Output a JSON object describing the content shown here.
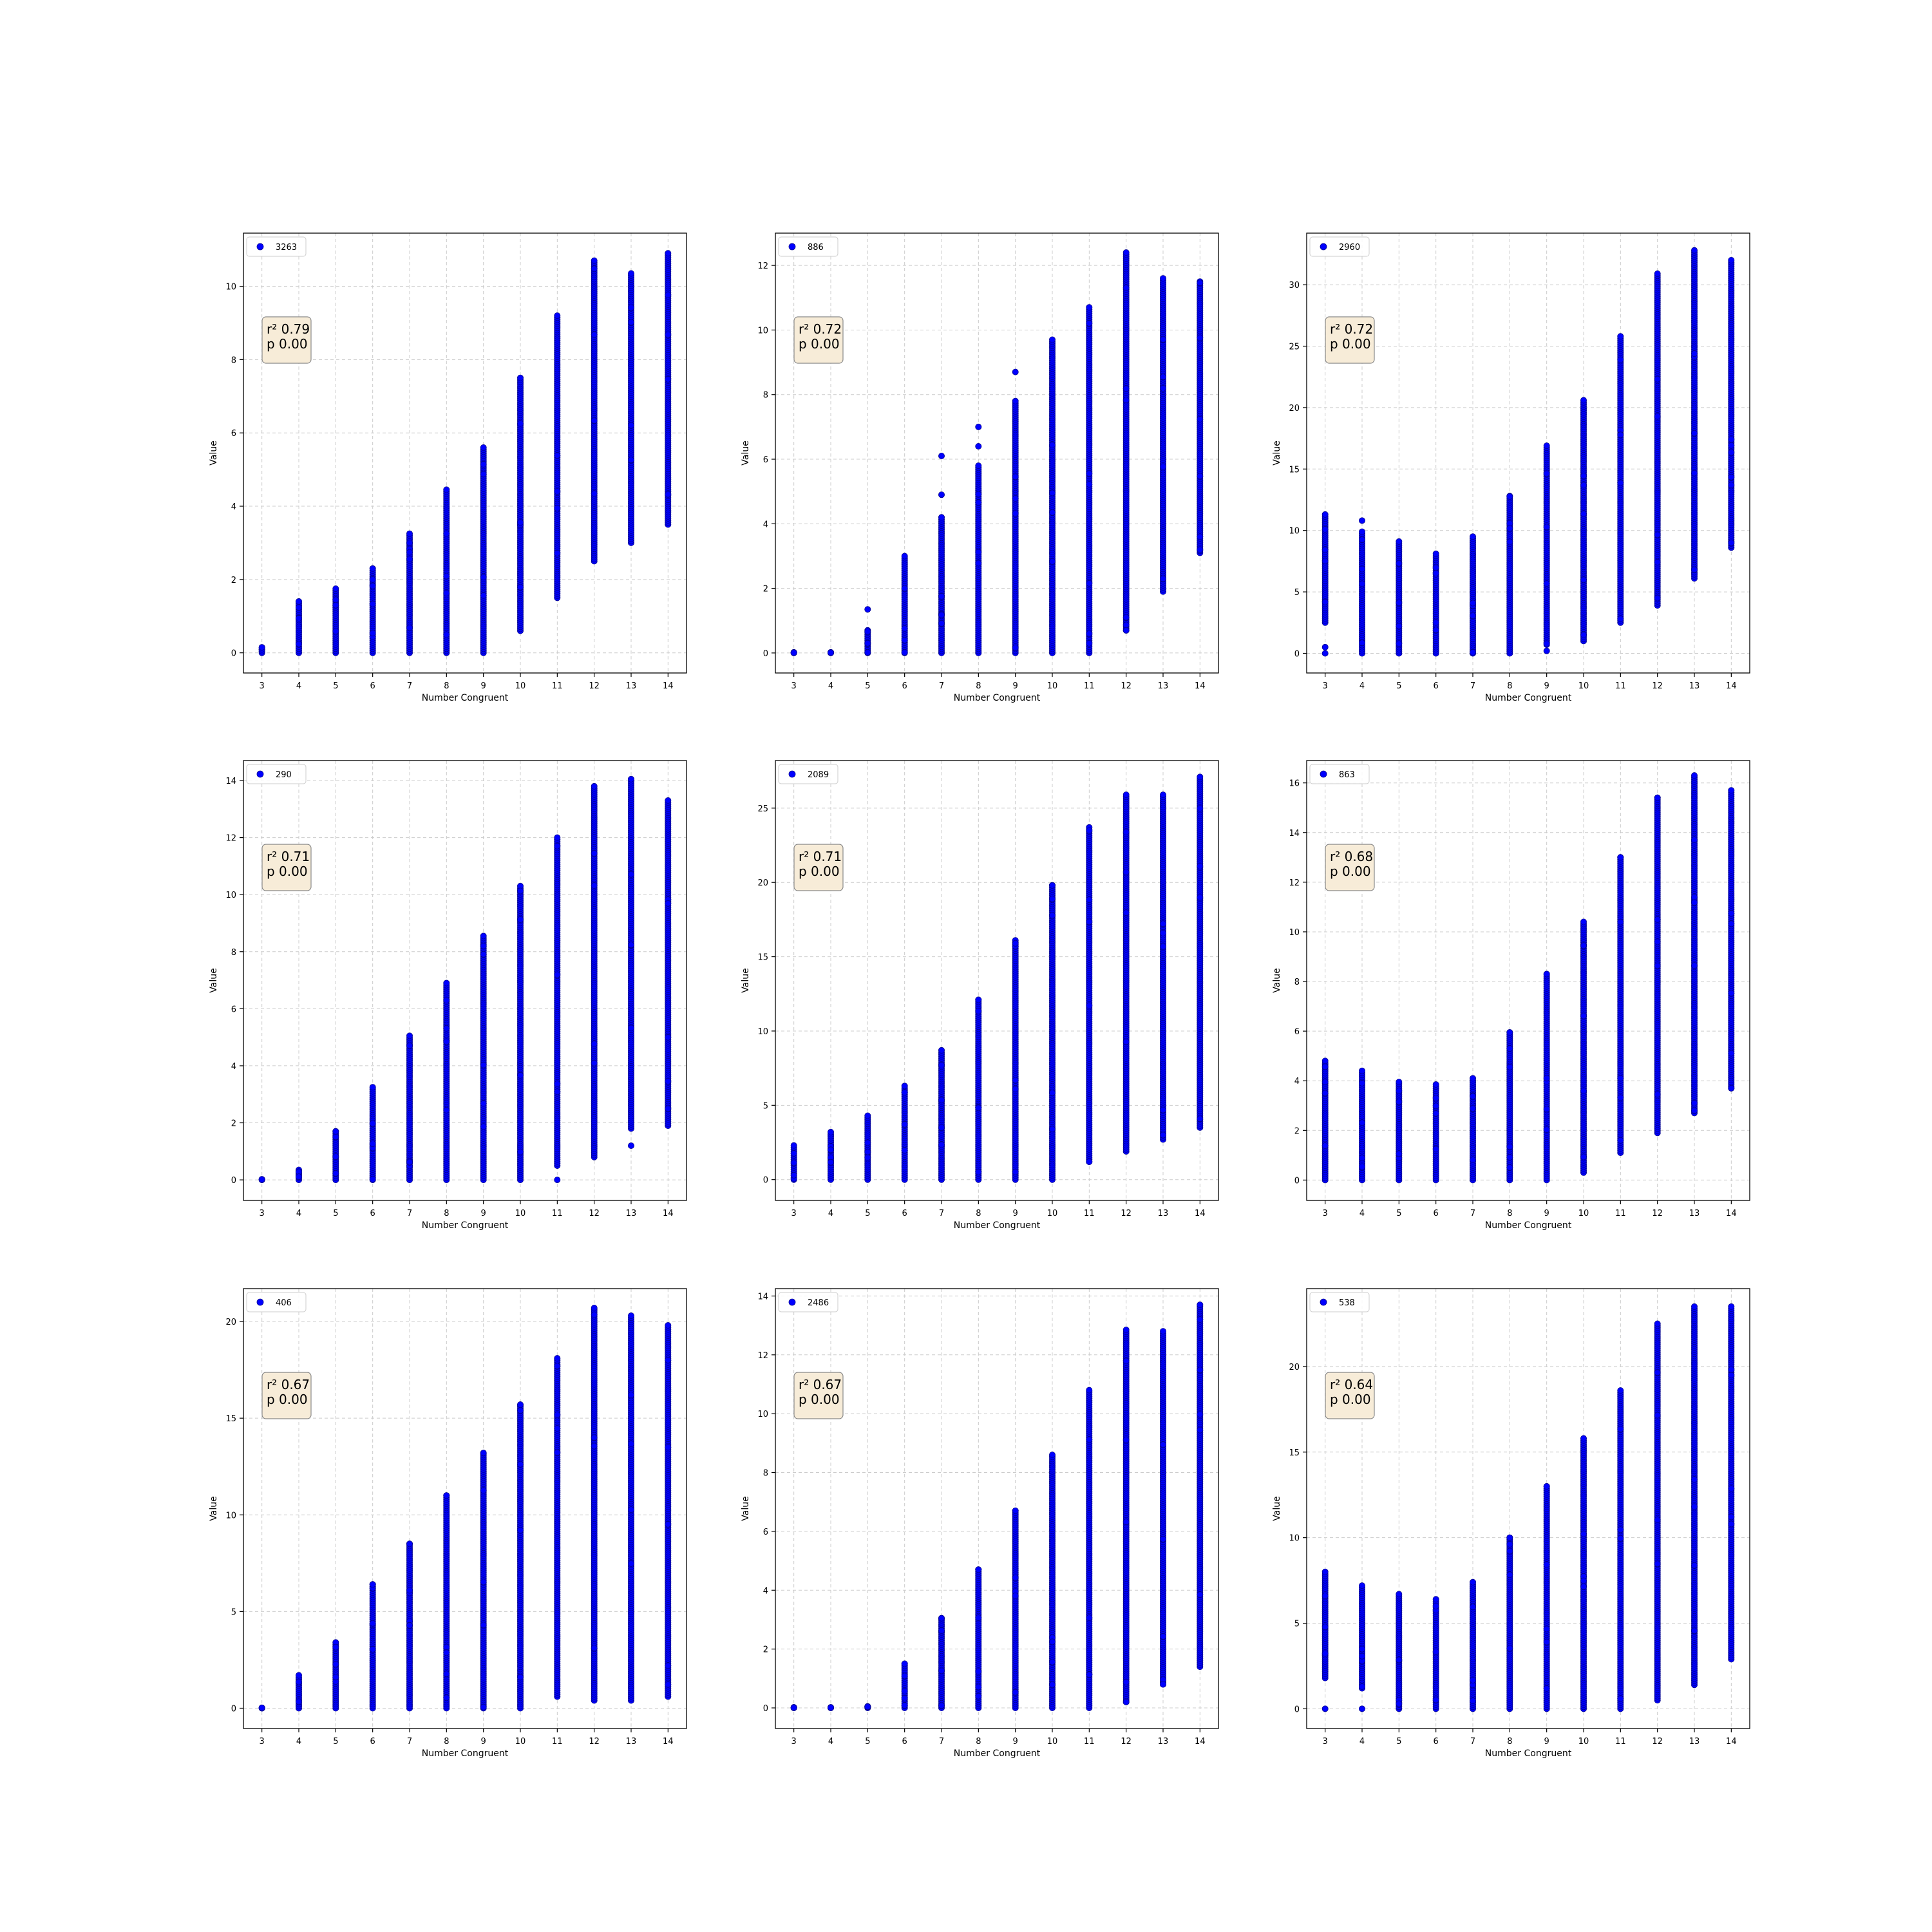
{
  "colors": {
    "marker": "#0000ff",
    "marker_edge": "#00008b",
    "stat_box_fill": "#f7ecd8",
    "stat_box_edge": "#888888",
    "grid": "#cccccc"
  },
  "chart_data": [
    {
      "type": "scatter",
      "legend": "3263",
      "legend_placement": "top-left",
      "annotation": [
        "r² 0.79",
        "p 0.00"
      ],
      "xlabel": "Number Congruent",
      "ylabel": "Value",
      "xlim": [
        2.5,
        14.5
      ],
      "ylim": [
        -0.55,
        11.45
      ],
      "xticks": [
        3,
        4,
        5,
        6,
        7,
        8,
        9,
        10,
        11,
        12,
        13,
        14
      ],
      "yticks": [
        0,
        2,
        4,
        6,
        8,
        10
      ],
      "grid": true,
      "x": [
        3,
        4,
        5,
        6,
        7,
        8,
        9,
        10,
        11,
        12,
        13,
        14
      ],
      "y_min": [
        0,
        0,
        0,
        0,
        0,
        0,
        0,
        0.6,
        1.5,
        2.5,
        3.0,
        3.5
      ],
      "y_max": [
        0.15,
        1.4,
        1.75,
        2.3,
        3.25,
        4.45,
        5.6,
        7.5,
        9.2,
        10.7,
        10.35,
        10.9
      ],
      "outliers": [
        [
          4,
          1.4
        ],
        [
          5,
          1.3
        ],
        [
          6,
          2.0
        ],
        [
          7,
          3.0
        ]
      ]
    },
    {
      "type": "scatter",
      "legend": "886",
      "legend_placement": "top-left",
      "annotation": [
        "r² 0.72",
        "p 0.00"
      ],
      "xlabel": "Number Congruent",
      "ylabel": "Value",
      "xlim": [
        2.5,
        14.5
      ],
      "ylim": [
        -0.62,
        13.0
      ],
      "xticks": [
        3,
        4,
        5,
        6,
        7,
        8,
        9,
        10,
        11,
        12,
        13,
        14
      ],
      "yticks": [
        0,
        2,
        4,
        6,
        8,
        10,
        12
      ],
      "grid": true,
      "x": [
        3,
        4,
        5,
        6,
        7,
        8,
        9,
        10,
        11,
        12,
        13,
        14
      ],
      "y_min": [
        0,
        0,
        0,
        0,
        0,
        0,
        0,
        0,
        0,
        0.7,
        1.9,
        3.1
      ],
      "y_max": [
        0.02,
        0.02,
        0.7,
        3.0,
        4.2,
        5.8,
        7.8,
        9.7,
        10.7,
        12.4,
        11.6,
        11.5
      ],
      "outliers": [
        [
          5,
          1.35
        ],
        [
          7,
          6.1
        ],
        [
          7,
          4.9
        ],
        [
          8,
          7.0
        ],
        [
          8,
          6.4
        ],
        [
          9,
          8.7
        ],
        [
          11,
          0.3
        ],
        [
          11,
          0.6
        ],
        [
          12,
          1.1
        ],
        [
          12,
          0.7
        ],
        [
          13,
          2.3
        ],
        [
          14,
          3.2
        ],
        [
          14,
          3.6
        ]
      ]
    },
    {
      "type": "scatter",
      "legend": "2960",
      "legend_placement": "top-left",
      "annotation": [
        "r² 0.72",
        "p 0.00"
      ],
      "xlabel": "Number Congruent",
      "ylabel": "Value",
      "xlim": [
        2.5,
        14.5
      ],
      "ylim": [
        -1.6,
        34.2
      ],
      "xticks": [
        3,
        4,
        5,
        6,
        7,
        8,
        9,
        10,
        11,
        12,
        13,
        14
      ],
      "yticks": [
        0,
        5,
        10,
        15,
        20,
        25,
        30
      ],
      "grid": true,
      "x": [
        3,
        4,
        5,
        6,
        7,
        8,
        9,
        10,
        11,
        12,
        13,
        14
      ],
      "y_min": [
        2.5,
        0,
        0,
        0,
        0,
        0,
        0.7,
        1.0,
        2.5,
        3.9,
        6.1,
        8.6
      ],
      "y_max": [
        11.3,
        9.9,
        9.1,
        8.1,
        9.5,
        12.8,
        16.9,
        20.6,
        25.8,
        30.9,
        32.8,
        32.0
      ],
      "outliers": [
        [
          3,
          0.5
        ],
        [
          3,
          0.0
        ],
        [
          4,
          10.8
        ],
        [
          9,
          0.2
        ],
        [
          10,
          1.5
        ],
        [
          11,
          2.8
        ],
        [
          12,
          4.5
        ],
        [
          13,
          6.8
        ],
        [
          14,
          13.7
        ],
        [
          14,
          9.0
        ]
      ]
    },
    {
      "type": "scatter",
      "legend": "290",
      "legend_placement": "top-left",
      "annotation": [
        "r² 0.71",
        "p 0.00"
      ],
      "xlabel": "Number Congruent",
      "ylabel": "Value",
      "xlim": [
        2.5,
        14.5
      ],
      "ylim": [
        -0.72,
        14.7
      ],
      "xticks": [
        3,
        4,
        5,
        6,
        7,
        8,
        9,
        10,
        11,
        12,
        13,
        14
      ],
      "yticks": [
        0,
        2,
        4,
        6,
        8,
        10,
        12,
        14
      ],
      "grid": true,
      "x": [
        3,
        4,
        5,
        6,
        7,
        8,
        9,
        10,
        11,
        12,
        13,
        14
      ],
      "y_min": [
        0,
        0,
        0,
        0,
        0,
        0,
        0,
        0,
        0.5,
        0.8,
        1.8,
        1.9
      ],
      "y_max": [
        0.02,
        0.35,
        1.7,
        3.25,
        5.05,
        6.9,
        8.55,
        10.3,
        12.0,
        13.8,
        14.05,
        13.3
      ],
      "outliers": [
        [
          5,
          1.7
        ],
        [
          7,
          4.7
        ],
        [
          8,
          6.3
        ],
        [
          9,
          8.2
        ],
        [
          11,
          0.0
        ],
        [
          13,
          1.2
        ],
        [
          14,
          2.5
        ]
      ]
    },
    {
      "type": "scatter",
      "legend": "2089",
      "legend_placement": "top-left",
      "annotation": [
        "r² 0.71",
        "p 0.00"
      ],
      "xlabel": "Number Congruent",
      "ylabel": "Value",
      "xlim": [
        2.5,
        14.5
      ],
      "ylim": [
        -1.4,
        28.2
      ],
      "xticks": [
        3,
        4,
        5,
        6,
        7,
        8,
        9,
        10,
        11,
        12,
        13,
        14
      ],
      "yticks": [
        0,
        5,
        10,
        15,
        20,
        25
      ],
      "grid": true,
      "x": [
        3,
        4,
        5,
        6,
        7,
        8,
        9,
        10,
        11,
        12,
        13,
        14
      ],
      "y_min": [
        0,
        0,
        0,
        0,
        0,
        0,
        0,
        0,
        1.2,
        1.9,
        2.7,
        3.5
      ],
      "y_max": [
        2.3,
        3.2,
        4.3,
        6.3,
        8.7,
        12.1,
        16.1,
        19.8,
        23.7,
        25.9,
        25.9,
        27.1
      ],
      "outliers": [
        [
          8,
          12.1
        ],
        [
          9,
          15.9
        ],
        [
          10,
          19.8
        ],
        [
          11,
          1.2
        ],
        [
          13,
          3.0
        ]
      ]
    },
    {
      "type": "scatter",
      "legend": "863",
      "legend_placement": "top-left",
      "annotation": [
        "r² 0.68",
        "p 0.00"
      ],
      "xlabel": "Number Congruent",
      "ylabel": "Value",
      "xlim": [
        2.5,
        14.5
      ],
      "ylim": [
        -0.82,
        16.9
      ],
      "xticks": [
        3,
        4,
        5,
        6,
        7,
        8,
        9,
        10,
        11,
        12,
        13,
        14
      ],
      "yticks": [
        0,
        2,
        4,
        6,
        8,
        10,
        12,
        14,
        16
      ],
      "grid": true,
      "x": [
        3,
        4,
        5,
        6,
        7,
        8,
        9,
        10,
        11,
        12,
        13,
        14
      ],
      "y_min": [
        0,
        0,
        0,
        0,
        0,
        0,
        0,
        0.3,
        1.1,
        1.9,
        2.7,
        3.7
      ],
      "y_max": [
        4.8,
        4.4,
        3.95,
        3.85,
        4.1,
        5.95,
        8.3,
        10.4,
        13.0,
        15.4,
        16.3,
        15.7
      ],
      "outliers": [
        [
          8,
          5.95
        ],
        [
          8,
          5.3
        ],
        [
          9,
          8.3
        ],
        [
          11,
          13.0
        ],
        [
          12,
          15.4
        ],
        [
          13,
          3.1
        ],
        [
          13,
          2.8
        ],
        [
          14,
          3.7
        ]
      ]
    },
    {
      "type": "scatter",
      "legend": "406",
      "legend_placement": "top-left",
      "annotation": [
        "r² 0.67",
        "p 0.00"
      ],
      "xlabel": "Number Congruent",
      "ylabel": "Value",
      "xlim": [
        2.5,
        14.5
      ],
      "ylim": [
        -1.05,
        21.7
      ],
      "xticks": [
        3,
        4,
        5,
        6,
        7,
        8,
        9,
        10,
        11,
        12,
        13,
        14
      ],
      "yticks": [
        0,
        5,
        10,
        15,
        20
      ],
      "grid": true,
      "x": [
        3,
        4,
        5,
        6,
        7,
        8,
        9,
        10,
        11,
        12,
        13,
        14
      ],
      "y_min": [
        0,
        0,
        0,
        0,
        0,
        0,
        0,
        0,
        0.6,
        0.4,
        0.4,
        0.6
      ],
      "y_max": [
        0.02,
        1.7,
        3.4,
        6.4,
        8.5,
        11.0,
        13.2,
        15.7,
        18.1,
        20.7,
        20.3,
        19.8
      ],
      "outliers": [
        [
          6,
          6.4
        ],
        [
          7,
          8.5
        ],
        [
          8,
          11.0
        ],
        [
          9,
          13.2
        ],
        [
          10,
          15.7
        ],
        [
          14,
          2.2
        ]
      ]
    },
    {
      "type": "scatter",
      "legend": "2486",
      "legend_placement": "top-left",
      "annotation": [
        "r² 0.67",
        "p 0.00"
      ],
      "xlabel": "Number Congruent",
      "ylabel": "Value",
      "xlim": [
        2.5,
        14.5
      ],
      "ylim": [
        -0.7,
        14.25
      ],
      "xticks": [
        3,
        4,
        5,
        6,
        7,
        8,
        9,
        10,
        11,
        12,
        13,
        14
      ],
      "yticks": [
        0,
        2,
        4,
        6,
        8,
        10,
        12,
        14
      ],
      "grid": true,
      "x": [
        3,
        4,
        5,
        6,
        7,
        8,
        9,
        10,
        11,
        12,
        13,
        14
      ],
      "y_min": [
        0,
        0,
        0,
        0,
        0,
        0,
        0,
        0,
        0,
        0.2,
        0.8,
        1.4
      ],
      "y_max": [
        0.02,
        0.02,
        0.05,
        1.5,
        3.05,
        4.7,
        6.7,
        8.6,
        10.8,
        12.85,
        12.8,
        13.7
      ],
      "outliers": [
        [
          6,
          1.5
        ],
        [
          7,
          3.05
        ],
        [
          8,
          4.7
        ],
        [
          9,
          6.7
        ],
        [
          12,
          0.2
        ],
        [
          13,
          0.8
        ],
        [
          14,
          13.7
        ],
        [
          14,
          13.2
        ]
      ]
    },
    {
      "type": "scatter",
      "legend": "538",
      "legend_placement": "top-left",
      "annotation": [
        "r² 0.64",
        "p 0.00"
      ],
      "xlabel": "Number Congruent",
      "ylabel": "Value",
      "xlim": [
        2.5,
        14.5
      ],
      "ylim": [
        -1.15,
        24.55
      ],
      "xticks": [
        3,
        4,
        5,
        6,
        7,
        8,
        9,
        10,
        11,
        12,
        13,
        14
      ],
      "yticks": [
        0,
        5,
        10,
        15,
        20
      ],
      "grid": true,
      "x": [
        3,
        4,
        5,
        6,
        7,
        8,
        9,
        10,
        11,
        12,
        13,
        14
      ],
      "y_min": [
        1.8,
        1.2,
        0,
        0,
        0,
        0,
        0,
        0,
        0,
        0.5,
        1.4,
        2.9
      ],
      "y_max": [
        8.0,
        7.2,
        6.7,
        6.4,
        7.4,
        10.0,
        13.0,
        15.8,
        18.6,
        22.5,
        23.5,
        23.5
      ],
      "outliers": [
        [
          3,
          0.0
        ],
        [
          4,
          0.0
        ],
        [
          8,
          10.0
        ],
        [
          9,
          13.0
        ],
        [
          14,
          10.8
        ]
      ]
    }
  ]
}
